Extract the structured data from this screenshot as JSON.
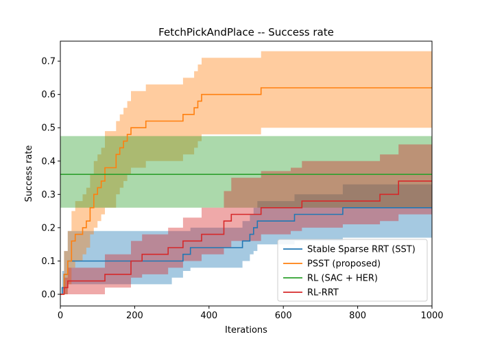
{
  "chart_data": {
    "type": "line",
    "title": "FetchPickAndPlace -- Success rate",
    "xlabel": "Iterations",
    "ylabel": "Success rate",
    "xlim": [
      0,
      1000
    ],
    "ylim": [
      -0.035,
      0.76
    ],
    "xticks": [
      0,
      200,
      400,
      600,
      800,
      1000
    ],
    "yticks": [
      0.0,
      0.1,
      0.2,
      0.3,
      0.4,
      0.5,
      0.6,
      0.7
    ],
    "grid": false,
    "legend_position": "bottom-right",
    "series": [
      {
        "name": "Stable Sparse RRT (SST)",
        "color": "#1f77b4",
        "step": true,
        "x": [
          0,
          5,
          10,
          20,
          300,
          330,
          350,
          490,
          510,
          520,
          530,
          630,
          760,
          1000
        ],
        "y": [
          0.0,
          0.02,
          0.06,
          0.1,
          0.1,
          0.12,
          0.14,
          0.16,
          0.18,
          0.2,
          0.22,
          0.24,
          0.26,
          0.26
        ],
        "band_lower": [
          0.0,
          0.0,
          0.0,
          0.03,
          0.05,
          0.07,
          0.08,
          0.1,
          0.12,
          0.13,
          0.15,
          0.16,
          0.17,
          0.17
        ],
        "band_upper": [
          0.0,
          0.07,
          0.13,
          0.19,
          0.19,
          0.19,
          0.2,
          0.22,
          0.24,
          0.26,
          0.28,
          0.3,
          0.33,
          0.35
        ]
      },
      {
        "name": "PSST (proposed)",
        "color": "#ff7f0e",
        "step": true,
        "x": [
          0,
          10,
          20,
          30,
          40,
          60,
          70,
          80,
          90,
          100,
          110,
          120,
          150,
          160,
          170,
          180,
          190,
          230,
          330,
          360,
          370,
          380,
          400,
          540,
          1000
        ],
        "y": [
          0.0,
          0.06,
          0.1,
          0.16,
          0.18,
          0.2,
          0.22,
          0.26,
          0.3,
          0.32,
          0.34,
          0.38,
          0.42,
          0.44,
          0.46,
          0.48,
          0.5,
          0.52,
          0.54,
          0.56,
          0.58,
          0.6,
          0.6,
          0.62,
          0.62
        ],
        "band_lower": [
          0.0,
          0.0,
          0.03,
          0.08,
          0.1,
          0.12,
          0.14,
          0.18,
          0.2,
          0.22,
          0.24,
          0.26,
          0.3,
          0.32,
          0.34,
          0.36,
          0.38,
          0.4,
          0.42,
          0.44,
          0.46,
          0.48,
          0.48,
          0.5,
          0.5
        ],
        "band_upper": [
          0.0,
          0.13,
          0.19,
          0.25,
          0.28,
          0.3,
          0.32,
          0.36,
          0.4,
          0.42,
          0.44,
          0.49,
          0.52,
          0.54,
          0.56,
          0.58,
          0.61,
          0.63,
          0.65,
          0.67,
          0.69,
          0.71,
          0.71,
          0.73,
          0.73
        ]
      },
      {
        "name": "RL (SAC + HER)",
        "color": "#2ca02c",
        "step": false,
        "x": [
          0,
          1000
        ],
        "y": [
          0.36,
          0.36
        ],
        "band_lower": [
          0.26,
          0.26
        ],
        "band_upper": [
          0.475,
          0.475
        ]
      },
      {
        "name": "RL-RRT",
        "color": "#d62728",
        "step": true,
        "x": [
          0,
          10,
          20,
          120,
          190,
          220,
          290,
          330,
          380,
          440,
          460,
          540,
          620,
          650,
          760,
          860,
          910,
          1000
        ],
        "y": [
          0.0,
          0.02,
          0.04,
          0.06,
          0.1,
          0.12,
          0.14,
          0.16,
          0.18,
          0.22,
          0.24,
          0.26,
          0.26,
          0.28,
          0.28,
          0.3,
          0.34,
          0.34
        ],
        "band_lower": [
          0.0,
          0.0,
          0.0,
          0.02,
          0.05,
          0.06,
          0.08,
          0.1,
          0.12,
          0.14,
          0.16,
          0.18,
          0.19,
          0.2,
          0.21,
          0.22,
          0.24,
          0.24
        ],
        "band_upper": [
          0.0,
          0.05,
          0.08,
          0.12,
          0.16,
          0.18,
          0.2,
          0.23,
          0.26,
          0.31,
          0.35,
          0.37,
          0.38,
          0.4,
          0.4,
          0.42,
          0.45,
          0.45
        ]
      }
    ]
  }
}
